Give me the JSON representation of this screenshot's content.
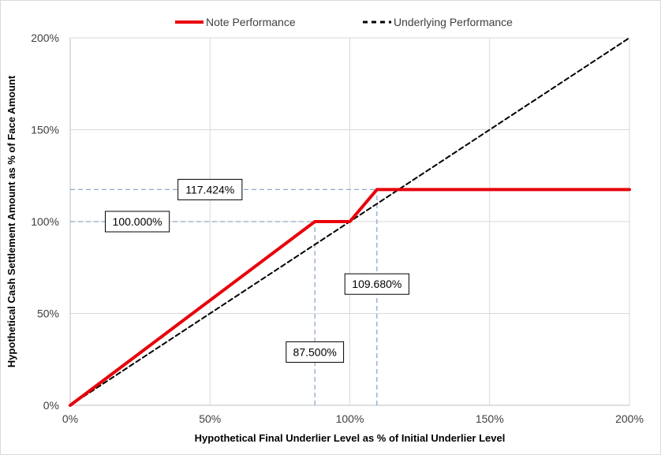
{
  "chart_data": {
    "type": "line",
    "xlabel": "Hypothetical Final Underlier Level as % of Initial Underlier Level",
    "ylabel": "Hypothetical Cash Settlement Amount as % of Face Amount",
    "xlim": [
      0,
      200
    ],
    "ylim": [
      0,
      200
    ],
    "x_ticks": [
      0,
      50,
      100,
      150,
      200
    ],
    "x_tick_labels": [
      "0%",
      "50%",
      "100%",
      "150%",
      "200%"
    ],
    "y_ticks": [
      0,
      50,
      100,
      150,
      200
    ],
    "y_tick_labels": [
      "0%",
      "50%",
      "100%",
      "150%",
      "200%"
    ],
    "grid": true,
    "legend_position": "top",
    "series": [
      {
        "name": "Note Performance",
        "color": "#e8000b",
        "style": "solid",
        "x": [
          0,
          87.5,
          100,
          109.68,
          200
        ],
        "y": [
          0,
          100,
          100,
          117.424,
          117.424
        ]
      },
      {
        "name": "Underlying Performance",
        "color": "#000000",
        "style": "dashed",
        "x": [
          0,
          200
        ],
        "y": [
          0,
          200
        ]
      }
    ],
    "reference_lines": [
      {
        "orientation": "horizontal",
        "y": 117.424,
        "x_from": 0,
        "x_to": 109.68,
        "label": "117.424%",
        "label_x": 50,
        "label_y": 117.424
      },
      {
        "orientation": "horizontal",
        "y": 100,
        "x_from": 0,
        "x_to": 87.5,
        "label": "100.000%",
        "label_x": 24,
        "label_y": 100
      },
      {
        "orientation": "vertical",
        "x": 87.5,
        "y_from": 0,
        "y_to": 100,
        "label": "87.500%",
        "label_x": 87.5,
        "label_y": 29
      },
      {
        "orientation": "vertical",
        "x": 109.68,
        "y_from": 0,
        "y_to": 117.424,
        "label": "109.680%",
        "label_x": 109.68,
        "label_y": 66
      }
    ],
    "reference_line_color": "#8ea9c8"
  }
}
